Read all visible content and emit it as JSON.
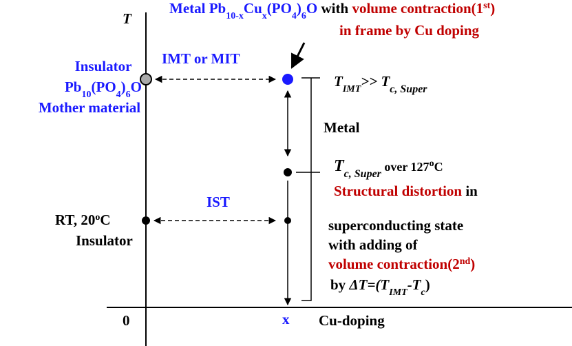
{
  "axes": {
    "y_label": "T",
    "origin": "0",
    "x_point": "x",
    "x_label": "Cu-doping"
  },
  "metal_note": {
    "line1": [
      "Metal Pb",
      "10-x",
      "Cu",
      "x",
      "(PO",
      "4",
      ")",
      "6",
      "O",
      " with ",
      "volume contraction(1",
      "st",
      ")"
    ],
    "line2": "in frame by Cu doping"
  },
  "mother": {
    "line1": "Insulator",
    "line2": [
      "Pb",
      "10",
      "(PO",
      "4",
      ")",
      "6",
      "O"
    ],
    "line3": "Mother material"
  },
  "imt_label": "IMT or MIT",
  "ist_label": "IST",
  "rt": {
    "line1": [
      "RT, 20",
      "o",
      "C"
    ],
    "line2": "Insulator"
  },
  "t_imt": [
    "T",
    "IMT",
    ">> T",
    "c, Super"
  ],
  "metal": "Metal",
  "t_c": [
    "T",
    "c, Super",
    " over 127",
    "o",
    "C"
  ],
  "notes": [
    [
      "Structural distortion",
      " in"
    ],
    "superconducting state",
    "with adding of",
    [
      "volume contraction(2",
      "nd",
      ")"
    ],
    [
      "by ",
      "ΔT",
      "=(T",
      "IMT",
      "-T",
      "c",
      ")"
    ]
  ]
}
